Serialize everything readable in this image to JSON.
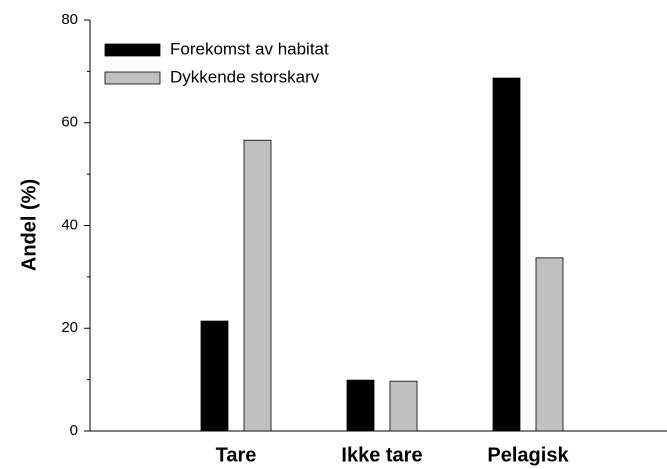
{
  "chart_data": {
    "type": "bar",
    "categories": [
      "Tare",
      "Ikke tare",
      "Pelagisk"
    ],
    "series": [
      {
        "name": "Forekomst av habitat",
        "color": "#000000",
        "values": [
          21.4,
          9.9,
          68.7
        ]
      },
      {
        "name": "Dykkende storskarv",
        "color": "#c0c0c0",
        "values": [
          56.6,
          9.7,
          33.7
        ]
      }
    ],
    "y_label": "Andel (%)",
    "ylim": [
      0,
      80
    ],
    "yticks": [
      0,
      20,
      40,
      60,
      80
    ],
    "legend": "upper left",
    "grid": false
  }
}
